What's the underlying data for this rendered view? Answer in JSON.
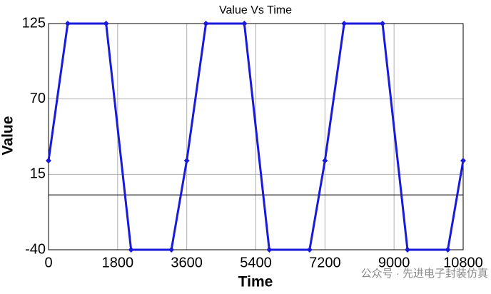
{
  "chart_data": {
    "type": "line",
    "title": "Value Vs Time",
    "x_label": "Time",
    "y_label": "Value",
    "x": [
      0,
      500,
      1500,
      2150,
      3200,
      3600,
      4100,
      5100,
      5750,
      6800,
      7200,
      7700,
      8700,
      9350,
      10400,
      10800
    ],
    "series": [
      {
        "name": "Value",
        "color": "#1a1adb",
        "values": [
          25,
          125,
          125,
          -40,
          -40,
          25,
          125,
          125,
          -40,
          -40,
          25,
          125,
          125,
          -40,
          -40,
          25
        ]
      }
    ],
    "xlim": [
      0,
      10800
    ],
    "xticks": [
      0,
      1800,
      3600,
      5400,
      7200,
      9000,
      10800
    ],
    "ylim": [
      -40,
      125
    ],
    "yticks": [
      -40,
      15,
      70,
      125
    ],
    "grid": true,
    "zero_line": true,
    "markers": true,
    "watermark": "公众号 · 先进电子封装仿真"
  }
}
